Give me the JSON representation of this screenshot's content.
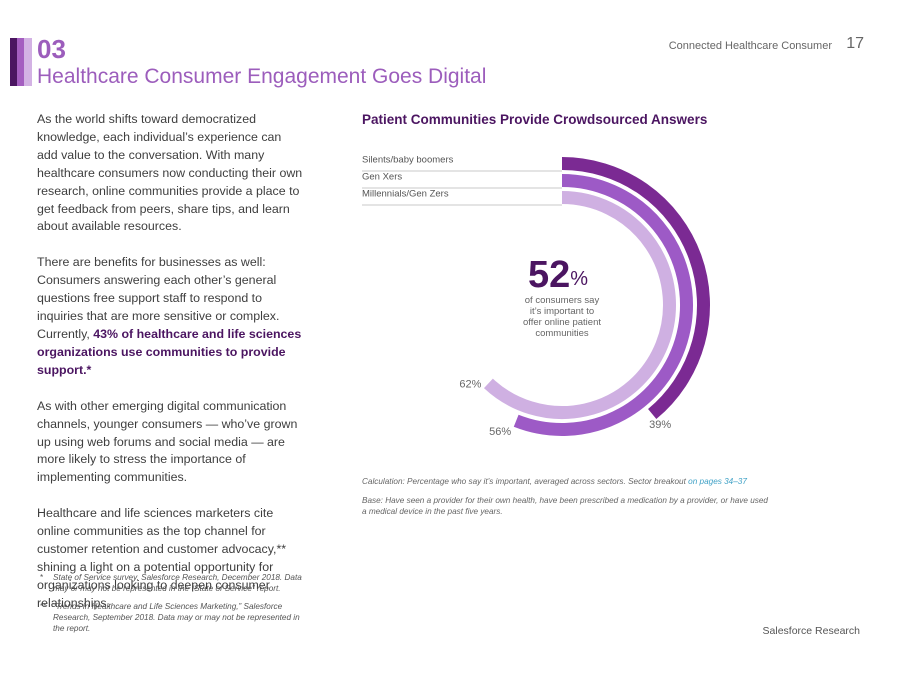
{
  "header": {
    "section_number": "03",
    "title": "Healthcare Consumer Engagement Goes Digital",
    "running_head": "Connected Healthcare Consumer",
    "page_number": "17"
  },
  "body": {
    "p1": "As the world shifts toward democratized knowledge, each individual’s experience can add value to the conversation. With many healthcare consumers now conducting their own research, online communities provide a place to get feedback from peers, share tips, and learn about available resources.",
    "p2_a": "There are benefits for businesses as well: Consumers answering each other’s general questions free support staff to respond to inquiries that are more sensitive or complex. Currently, ",
    "p2_bold": "43% of healthcare and life sciences organizations use communities to provide support.*",
    "p3": "As with other emerging digital communication channels, younger consumers — who’ve grown up using web forums and social media — are more likely to stress the importance of implementing communities.",
    "p4": "Healthcare and life sciences marketers cite online communities as the top channel for customer retention and customer advocacy,** shining a light on a potential opportunity for organizations looking to deepen consumer relationships."
  },
  "footnotes": [
    {
      "mark": "*",
      "text": "State of Service survey, Salesforce Research, December 2018. Data may or may not be represented in the “State of Service” report."
    },
    {
      "mark": "**",
      "text": "“Trends in Healthcare and Life Sciences Marketing,” Salesforce Research, September 2018. Data may or may not be represented in the report."
    }
  ],
  "chart_data": {
    "type": "radial-bar",
    "title": "Patient Communities Provide Crowdsourced Answers",
    "categories": [
      "Silents/baby boomers",
      "Gen Xers",
      "Millennials/Gen Zers"
    ],
    "values": [
      39,
      56,
      62
    ],
    "value_labels": [
      "39%",
      "56%",
      "62%"
    ],
    "unit": "%",
    "ylim": [
      0,
      100
    ],
    "center_value": "52",
    "center_unit": "%",
    "center_caption": "of consumers say it’s important to offer online patient communities",
    "colors": [
      "#7b2a93",
      "#9d5ac6",
      "#cfb0e2"
    ]
  },
  "notes": {
    "calculation": "Calculation: Percentage who say it’s important, averaged across sectors. Sector breakout ",
    "calculation_link": "on pages 34–37",
    "base": "Base: Have seen a provider for their own health, have been prescribed a medication by a provider, or have used a medical device in the past five years."
  },
  "brand": "Salesforce Research"
}
